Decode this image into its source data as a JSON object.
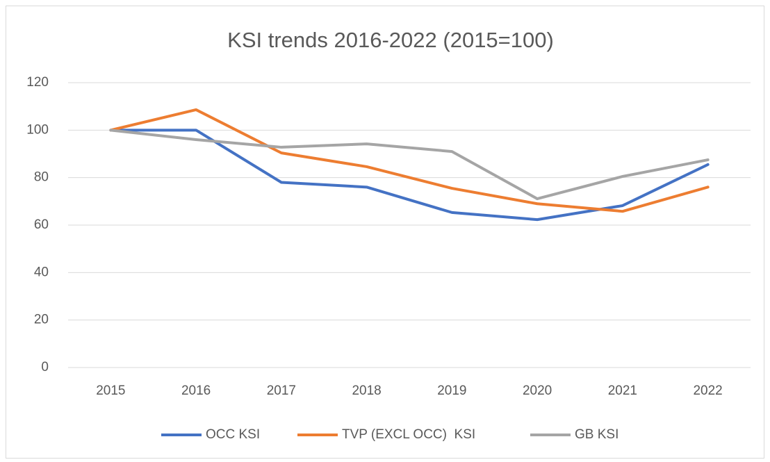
{
  "chart_data": {
    "type": "line",
    "title": "KSI trends 2016-2022 (2015=100)",
    "categories": [
      "2015",
      "2016",
      "2017",
      "2018",
      "2019",
      "2020",
      "2021",
      "2022"
    ],
    "series": [
      {
        "name": "OCC KSI",
        "color": "#4472c4",
        "values": [
          100,
          100,
          78,
          76,
          65.3,
          62.3,
          68.2,
          85.5
        ]
      },
      {
        "name": "TVP (EXCL OCC)  KSI",
        "color": "#ed7d31",
        "values": [
          100,
          108.6,
          90.4,
          84.6,
          75.5,
          69,
          65.8,
          76
        ]
      },
      {
        "name": "GB KSI",
        "color": "#a5a5a5",
        "values": [
          100,
          96,
          92.8,
          94.2,
          91,
          71.1,
          80.5,
          87.5
        ]
      }
    ],
    "ylim": [
      0,
      120
    ],
    "yticks": [
      0,
      20,
      40,
      60,
      80,
      100,
      120
    ],
    "grid": true,
    "legend": "bottom"
  }
}
